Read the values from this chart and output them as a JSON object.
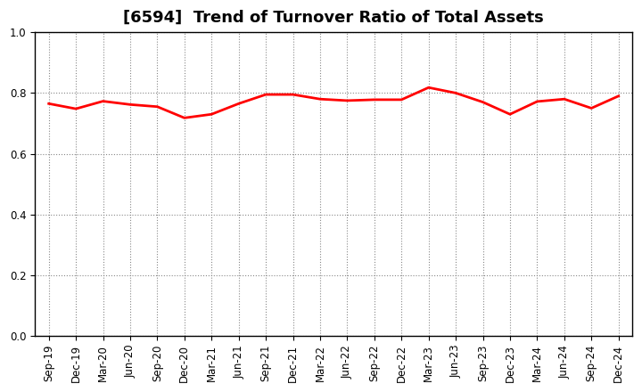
{
  "title": "[6594]  Trend of Turnover Ratio of Total Assets",
  "x_labels": [
    "Sep-19",
    "Dec-19",
    "Mar-20",
    "Jun-20",
    "Sep-20",
    "Dec-20",
    "Mar-21",
    "Jun-21",
    "Sep-21",
    "Dec-21",
    "Mar-22",
    "Jun-22",
    "Sep-22",
    "Dec-22",
    "Mar-23",
    "Jun-23",
    "Sep-23",
    "Dec-23",
    "Mar-24",
    "Jun-24",
    "Sep-24",
    "Dec-24"
  ],
  "y_values": [
    0.765,
    0.748,
    0.773,
    0.762,
    0.755,
    0.718,
    0.73,
    0.765,
    0.795,
    0.795,
    0.78,
    0.775,
    0.778,
    0.778,
    0.818,
    0.8,
    0.77,
    0.73,
    0.772,
    0.78,
    0.75,
    0.79
  ],
  "line_color": "#FF0000",
  "line_width": 2.0,
  "ylim": [
    0.0,
    1.0
  ],
  "yticks": [
    0.0,
    0.2,
    0.4,
    0.6,
    0.8,
    1.0
  ],
  "grid_color": "#888888",
  "background_color": "#ffffff",
  "title_fontsize": 13,
  "tick_fontsize": 8.5
}
